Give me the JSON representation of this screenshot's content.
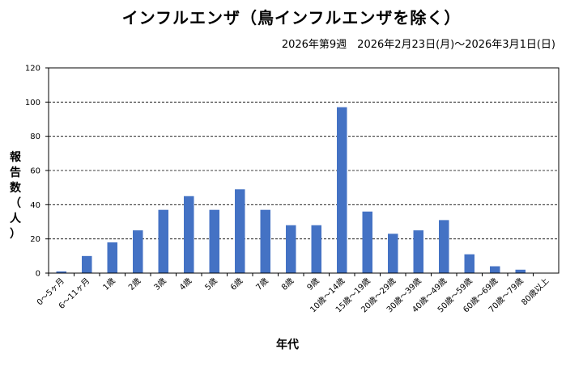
{
  "chart_data": {
    "type": "bar",
    "title": "インフルエンザ（鳥インフルエンザを除く）",
    "subtitle": "2026年第9週　2026年2月23日(月)～2026年3月1日(日)",
    "xlabel": "年代",
    "ylabel": [
      "報",
      "告",
      "数",
      "（",
      "人",
      "）"
    ],
    "ylim": [
      0,
      120
    ],
    "yticks": [
      0,
      20,
      40,
      60,
      80,
      100,
      120
    ],
    "grid": true,
    "bar_color": "#4472c4",
    "categories": [
      "0～5ヶ月",
      "6～11ヶ月",
      "1歳",
      "2歳",
      "3歳",
      "4歳",
      "5歳",
      "6歳",
      "7歳",
      "8歳",
      "9歳",
      "10歳～14歳",
      "15歳～19歳",
      "20歳～29歳",
      "30歳～39歳",
      "40歳～49歳",
      "50歳～59歳",
      "60歳～69歳",
      "70歳～79歳",
      "80歳以上"
    ],
    "values": [
      1,
      10,
      18,
      25,
      37,
      45,
      37,
      49,
      37,
      28,
      28,
      97,
      36,
      23,
      25,
      31,
      11,
      4,
      2,
      0
    ]
  }
}
